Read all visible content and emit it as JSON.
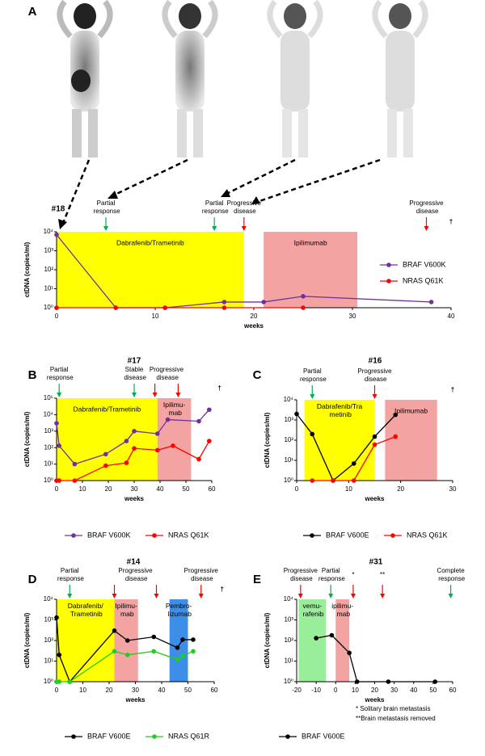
{
  "chart_data": [
    {
      "panel": "A",
      "type": "line",
      "title": "#18",
      "xlabel": "weeks",
      "ylabel": "ctDNA (copies/ml)",
      "xlim": [
        0,
        40
      ],
      "xticks": [
        0,
        10,
        20,
        30,
        40
      ],
      "ylim": [
        1,
        10000
      ],
      "ylog": true,
      "yticks": [
        {
          "value": 1,
          "label": "10⁰"
        },
        {
          "value": 10,
          "label": "10¹"
        },
        {
          "value": 100,
          "label": "10²"
        },
        {
          "value": 1000,
          "label": "10³"
        },
        {
          "value": 10000,
          "label": "10⁴"
        }
      ],
      "legend": "right",
      "regions": [
        {
          "label": "Dabrafenib/Trametinib",
          "x0": 0,
          "x1": 19,
          "color": "#ffff00"
        },
        {
          "label": "Ipilimumab",
          "x0": 21,
          "x1": 30.5,
          "color": "#f4a3a3"
        }
      ],
      "series": [
        {
          "name": "BRAF V600K",
          "color": "#7030a0",
          "x": [
            0,
            6,
            11,
            17,
            21,
            25,
            38
          ],
          "values": [
            7000,
            1,
            1,
            2,
            2,
            4,
            2
          ]
        },
        {
          "name": "NRAS Q61K",
          "color": "#ff0000",
          "x": [
            0,
            6,
            11,
            17,
            25
          ],
          "values": [
            1,
            1,
            1,
            1,
            1
          ]
        }
      ],
      "annotations": [
        {
          "text": "Partial\nresponse",
          "color": "#00b050",
          "arrows": [
            5
          ]
        },
        {
          "text": "Partial\nresponse",
          "color": "#00b050",
          "arrows": [
            16
          ]
        },
        {
          "text": "Progressive\ndisease",
          "color": "#ff0000",
          "arrows": [
            19
          ]
        },
        {
          "text": "Progressive\ndisease",
          "color": "#ff0000",
          "arrows": [
            37.5
          ]
        }
      ],
      "death_marker": {
        "text": "†",
        "x": 40
      }
    },
    {
      "panel": "B",
      "type": "line",
      "title": "#17",
      "xlabel": "weeks",
      "ylabel": "ctDNA (copies/ml)",
      "xlim": [
        0,
        60
      ],
      "xticks": [
        0,
        10,
        20,
        30,
        40,
        50,
        60
      ],
      "ylim": [
        1,
        100000
      ],
      "ylog": true,
      "yticks": [
        {
          "value": 1,
          "label": "10⁰"
        },
        {
          "value": 10,
          "label": "10¹"
        },
        {
          "value": 100,
          "label": "10²"
        },
        {
          "value": 1000,
          "label": "10³"
        },
        {
          "value": 10000,
          "label": "10⁴"
        },
        {
          "value": 100000,
          "label": "10⁵"
        }
      ],
      "legend": "bottom",
      "regions": [
        {
          "label": "Dabrafenib/Trametinib",
          "x0": 0,
          "x1": 39,
          "color": "#ffff00"
        },
        {
          "label": "Ipilimu-\nmab",
          "x0": 39,
          "x1": 52,
          "color": "#f4a3a3"
        }
      ],
      "series": [
        {
          "name": "BRAF V600K",
          "color": "#7030a0",
          "x": [
            0,
            1,
            7,
            19,
            27,
            30,
            39,
            43,
            55,
            59
          ],
          "values": [
            3000,
            130,
            10,
            40,
            250,
            1000,
            700,
            5000,
            4000,
            20000
          ]
        },
        {
          "name": "NRAS Q61K",
          "color": "#ff0000",
          "x": [
            0,
            1,
            7,
            19,
            27,
            30,
            39,
            45,
            55,
            59
          ],
          "values": [
            1,
            1,
            1,
            8,
            12,
            90,
            70,
            130,
            20,
            250
          ]
        }
      ],
      "annotations": [
        {
          "text": "Partial\nresponse",
          "color": "#00b050",
          "arrows": [
            1
          ]
        },
        {
          "text": "Stable\ndisease",
          "color": "#00b050",
          "arrows": [
            30
          ]
        },
        {
          "text": "Progressive\ndisease",
          "color": "#ff0000",
          "arrows": [
            38,
            47
          ]
        }
      ],
      "death_marker": {
        "text": "†",
        "x": 63
      }
    },
    {
      "panel": "C",
      "type": "line",
      "title": "#16",
      "xlabel": "weeks",
      "ylabel": "ctDNA (copies/ml)",
      "xlim": [
        0,
        30
      ],
      "xticks": [
        0,
        10,
        20,
        30
      ],
      "ylim": [
        1,
        10000
      ],
      "ylog": true,
      "yticks": [
        {
          "value": 1,
          "label": "10⁰"
        },
        {
          "value": 10,
          "label": "10¹"
        },
        {
          "value": 100,
          "label": "10²"
        },
        {
          "value": 1000,
          "label": "10³"
        },
        {
          "value": 10000,
          "label": "10⁴"
        }
      ],
      "legend": "bottom",
      "regions": [
        {
          "label": "Dabrafenib/Tra\nmetinib",
          "x0": 1.5,
          "x1": 15,
          "color": "#ffff00"
        },
        {
          "label": "Ipilimumab",
          "x0": 17,
          "x1": 27,
          "color": "#f4a3a3"
        }
      ],
      "series": [
        {
          "name": "BRAF V600E",
          "color": "#000000",
          "x": [
            0,
            3,
            7,
            11,
            15,
            19
          ],
          "values": [
            2000,
            200,
            1,
            7,
            150,
            1800
          ]
        },
        {
          "name": "NRAS Q61K",
          "color": "#ff0000",
          "x": [
            3,
            7,
            11,
            15,
            19
          ],
          "values": [
            1,
            1,
            1,
            60,
            150
          ]
        }
      ],
      "annotations": [
        {
          "text": "Partial\nresponse",
          "color": "#00b050",
          "arrows": [
            3
          ]
        },
        {
          "text": "Progressive\ndisease",
          "color": "#ff0000",
          "arrows": [
            15
          ]
        }
      ],
      "death_marker": {
        "text": "†",
        "x": 30
      }
    },
    {
      "panel": "D",
      "type": "line",
      "title": "#14",
      "xlabel": "weeks",
      "ylabel": "ctDNA (copies/ml)",
      "xlim": [
        0,
        60
      ],
      "xticks": [
        0,
        10,
        20,
        30,
        40,
        50,
        60
      ],
      "ylim": [
        1,
        10000
      ],
      "ylog": true,
      "yticks": [
        {
          "value": 1,
          "label": "10⁰"
        },
        {
          "value": 10,
          "label": "10¹"
        },
        {
          "value": 100,
          "label": "10²"
        },
        {
          "value": 1000,
          "label": "10³"
        },
        {
          "value": 10000,
          "label": "10⁴"
        }
      ],
      "legend": "bottom",
      "regions": [
        {
          "label": "Dabrafenib/\nTrametinib",
          "x0": 0,
          "x1": 22,
          "color": "#ffff00"
        },
        {
          "label": "Ipilimu-\nmab",
          "x0": 22,
          "x1": 31,
          "color": "#f4a3a3"
        },
        {
          "label": "Pembro-\nlizumab",
          "x0": 43,
          "x1": 50,
          "color": "#3d8ee8"
        }
      ],
      "series": [
        {
          "name": "BRAF V600E",
          "color": "#000000",
          "x": [
            0,
            1,
            5,
            22,
            27,
            37,
            46,
            48,
            52
          ],
          "values": [
            1300,
            20,
            1,
            300,
            100,
            150,
            45,
            110,
            110
          ]
        },
        {
          "name": "NRAS Q61R",
          "color": "#22cc22",
          "x": [
            0,
            1,
            5,
            22,
            27,
            37,
            46,
            48,
            52
          ],
          "values": [
            1,
            1,
            1,
            30,
            20,
            30,
            12,
            18,
            30
          ]
        }
      ],
      "annotations": [
        {
          "text": "Partial\nresponse",
          "color": "#00b050",
          "arrows": [
            5
          ]
        },
        {
          "text": "Progressive\ndisease",
          "color": "#ff0000",
          "arrows": [
            22,
            38
          ]
        },
        {
          "text": "Progressive\ndisease",
          "color": "#ff0000",
          "arrows": [
            55
          ]
        }
      ],
      "death_marker": {
        "text": "†",
        "x": 63
      }
    },
    {
      "panel": "E",
      "type": "line",
      "title": "#31",
      "xlabel": "weeks",
      "ylabel": "ctDNA (copies/ml)",
      "xlim": [
        -20,
        60
      ],
      "xticks": [
        -20,
        -10,
        0,
        10,
        20,
        30,
        40,
        50,
        60
      ],
      "ylim": [
        1,
        10000
      ],
      "ylog": true,
      "yticks": [
        {
          "value": 1,
          "label": "10⁰"
        },
        {
          "value": 10,
          "label": "10¹"
        },
        {
          "value": 100,
          "label": "10²"
        },
        {
          "value": 1000,
          "label": "10³"
        },
        {
          "value": 10000,
          "label": "10⁴"
        }
      ],
      "legend": "bottom",
      "regions": [
        {
          "label": "vemu-\nrafenib",
          "x0": -19,
          "x1": -5,
          "color": "#99ee99"
        },
        {
          "label": "ipilimu-\nmab",
          "x0": 0,
          "x1": 7,
          "color": "#f4a3a3"
        }
      ],
      "series": [
        {
          "name": "BRAF V600E",
          "color": "#000000",
          "x": [
            -10,
            -2,
            7,
            11,
            27,
            51
          ],
          "values": [
            130,
            180,
            25,
            1,
            1,
            1
          ]
        }
      ],
      "annotations": [
        {
          "text": "Progressive\ndisease",
          "color": "#ff0000",
          "arrows": [
            -18
          ]
        },
        {
          "text": "Partial\nresponse",
          "color": "#00b050",
          "arrows": [
            -2.5
          ]
        },
        {
          "text": "*",
          "color": "#ff0000",
          "arrows": [
            9
          ]
        },
        {
          "text": "**",
          "color": "#ff0000",
          "arrows": [
            24
          ]
        },
        {
          "text": "Complete\nresponse",
          "color": "#00b050",
          "arrows": [
            59
          ]
        }
      ],
      "footnotes": [
        "* Solitary brain metastasis",
        "**Brain metastasis removed"
      ]
    }
  ]
}
